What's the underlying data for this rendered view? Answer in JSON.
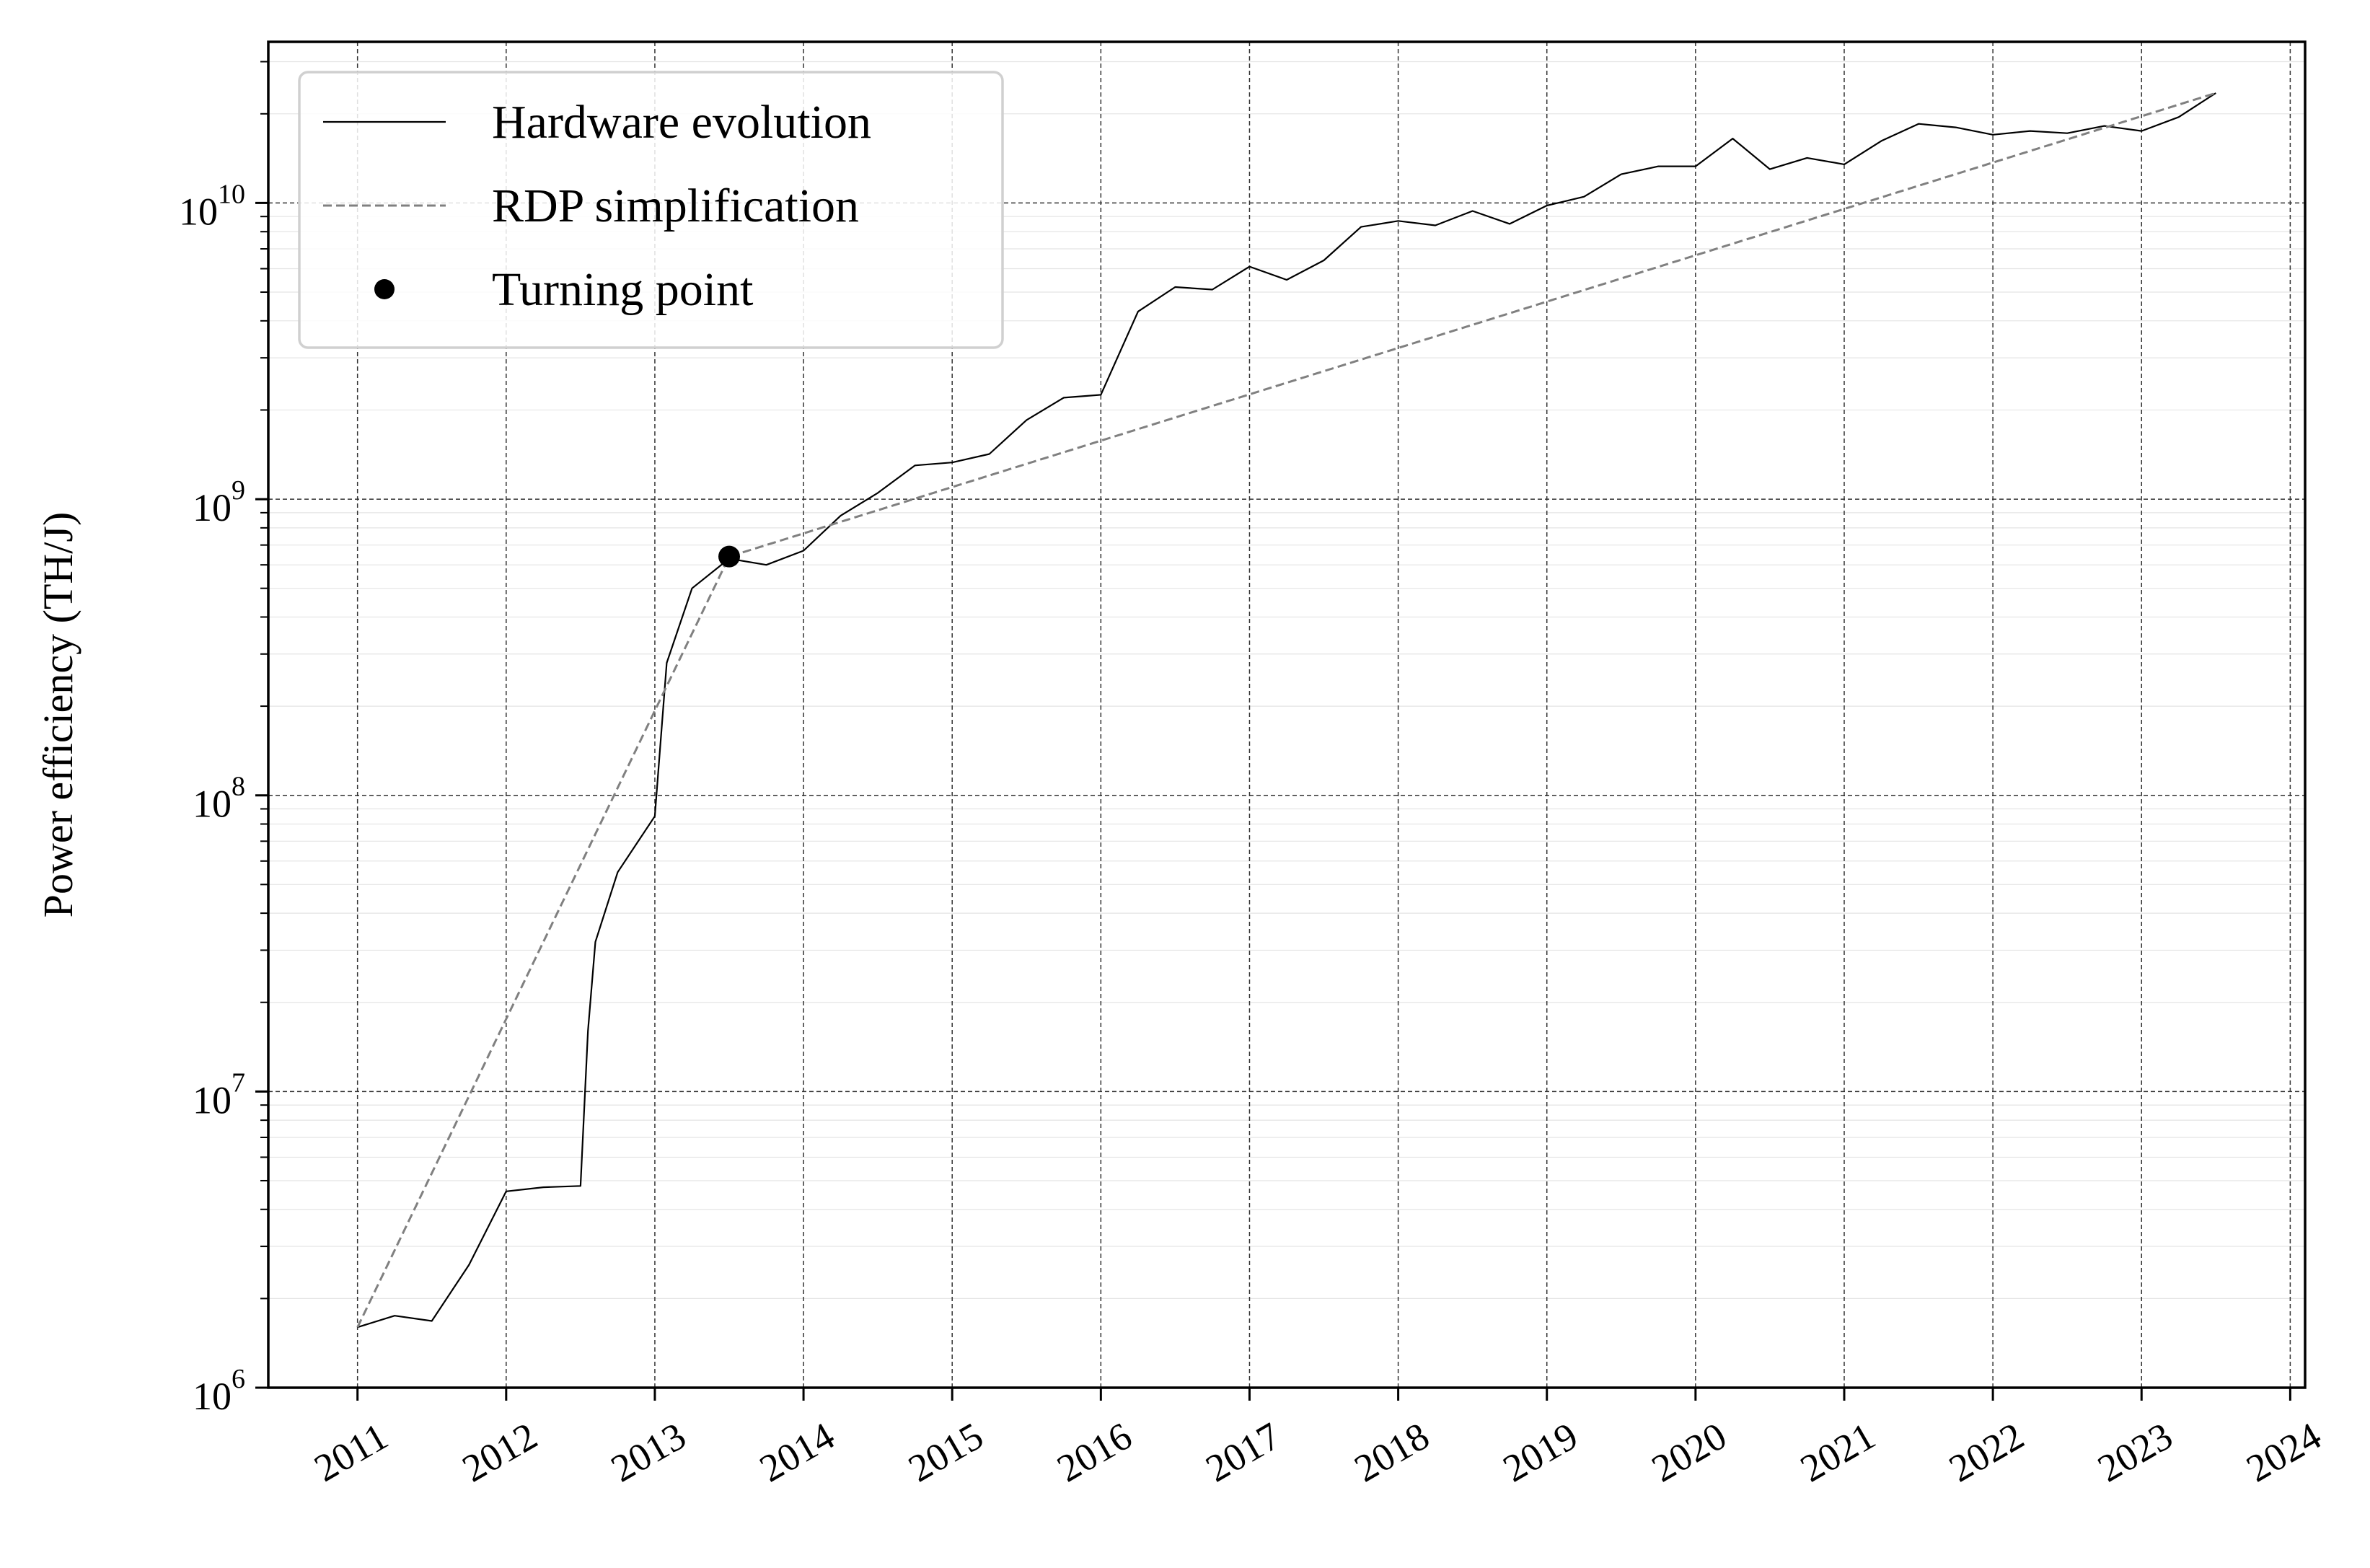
{
  "chart_data": {
    "type": "line",
    "title": "",
    "xlabel": "",
    "ylabel": "Power efficiency (TH/J)",
    "y_scale": "log",
    "ylim": [
      1000000,
      35000000000
    ],
    "xlim": [
      2010.4,
      2024.1
    ],
    "x_ticks": [
      "2011",
      "2012",
      "2013",
      "2014",
      "2015",
      "2016",
      "2017",
      "2018",
      "2019",
      "2020",
      "2021",
      "2022",
      "2023",
      "2024"
    ],
    "y_ticks": [
      {
        "base": "10",
        "exp": "6",
        "value": 1000000
      },
      {
        "base": "10",
        "exp": "7",
        "value": 10000000
      },
      {
        "base": "10",
        "exp": "8",
        "value": 100000000
      },
      {
        "base": "10",
        "exp": "9",
        "value": 1000000000
      },
      {
        "base": "10",
        "exp": "10",
        "value": 10000000000
      }
    ],
    "grid": true,
    "legend_position": "top-left",
    "series": [
      {
        "name": "Hardware evolution",
        "style": "solid",
        "color": "#000000",
        "points": [
          [
            2011.0,
            1600000.0
          ],
          [
            2011.25,
            1750000.0
          ],
          [
            2011.5,
            1680000.0
          ],
          [
            2011.75,
            2600000.0
          ],
          [
            2012.0,
            4600000.0
          ],
          [
            2012.25,
            4750000.0
          ],
          [
            2012.5,
            4800000.0
          ],
          [
            2012.55,
            16000000.0
          ],
          [
            2012.6,
            32000000.0
          ],
          [
            2012.75,
            55000000.0
          ],
          [
            2013.0,
            85000000.0
          ],
          [
            2013.08,
            280000000.0
          ],
          [
            2013.25,
            500000000.0
          ],
          [
            2013.5,
            630000000.0
          ],
          [
            2013.75,
            600000000.0
          ],
          [
            2014.0,
            670000000.0
          ],
          [
            2014.25,
            880000000.0
          ],
          [
            2014.5,
            1050000000.0
          ],
          [
            2014.75,
            1300000000.0
          ],
          [
            2015.0,
            1330000000.0
          ],
          [
            2015.25,
            1420000000.0
          ],
          [
            2015.5,
            1850000000.0
          ],
          [
            2015.75,
            2200000000.0
          ],
          [
            2016.0,
            2250000000.0
          ],
          [
            2016.25,
            4300000000.0
          ],
          [
            2016.5,
            5200000000.0
          ],
          [
            2016.75,
            5100000000.0
          ],
          [
            2017.0,
            6100000000.0
          ],
          [
            2017.25,
            5500000000.0
          ],
          [
            2017.5,
            6400000000.0
          ],
          [
            2017.75,
            8300000000.0
          ],
          [
            2018.0,
            8700000000.0
          ],
          [
            2018.25,
            8400000000.0
          ],
          [
            2018.5,
            9400000000.0
          ],
          [
            2018.75,
            8500000000.0
          ],
          [
            2019.0,
            9800000000.0
          ],
          [
            2019.25,
            10500000000.0
          ],
          [
            2019.5,
            12500000000.0
          ],
          [
            2019.75,
            13300000000.0
          ],
          [
            2020.0,
            13300000000.0
          ],
          [
            2020.25,
            16500000000.0
          ],
          [
            2020.5,
            13000000000.0
          ],
          [
            2020.75,
            14200000000.0
          ],
          [
            2021.0,
            13500000000.0
          ],
          [
            2021.25,
            16200000000.0
          ],
          [
            2021.5,
            18500000000.0
          ],
          [
            2021.75,
            18000000000.0
          ],
          [
            2022.0,
            17000000000.0
          ],
          [
            2022.25,
            17500000000.0
          ],
          [
            2022.5,
            17200000000.0
          ],
          [
            2022.75,
            18200000000.0
          ],
          [
            2023.0,
            17500000000.0
          ],
          [
            2023.25,
            19500000000.0
          ],
          [
            2023.5,
            23500000000.0
          ]
        ]
      },
      {
        "name": "RDP simplification",
        "style": "dashed",
        "color": "#808080",
        "points": [
          [
            2011.0,
            1600000.0
          ],
          [
            2013.5,
            640000000.0
          ],
          [
            2023.5,
            23500000000.0
          ]
        ]
      },
      {
        "name": "Turning point",
        "style": "marker",
        "color": "#000000",
        "points": [
          [
            2013.5,
            640000000.0
          ]
        ]
      }
    ]
  }
}
